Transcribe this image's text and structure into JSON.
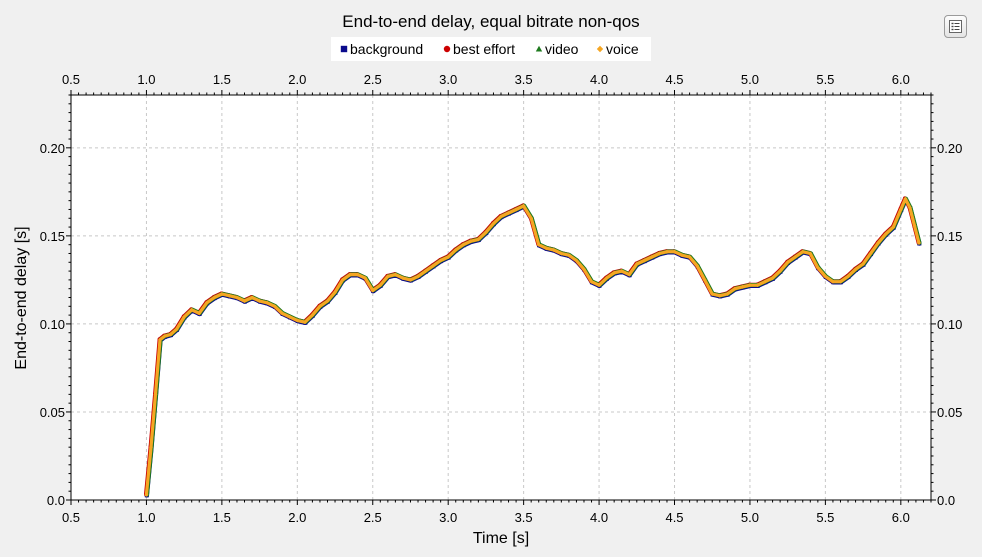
{
  "window": {
    "menu_icon": "chart-options-menu-icon"
  },
  "chart_data": {
    "type": "line",
    "title": "End-to-end delay, equal bitrate non-qos",
    "xlabel": "Time [s]",
    "ylabel": "End-to-end delay [s]",
    "xlim": [
      0.5,
      6.2
    ],
    "ylim": [
      0.0,
      0.23
    ],
    "xticks": [
      "0.5",
      "1.0",
      "1.5",
      "2.0",
      "2.5",
      "3.0",
      "3.5",
      "4.0",
      "4.5",
      "5.0",
      "5.5",
      "6.0"
    ],
    "yticks": [
      "0.0",
      "0.05",
      "0.10",
      "0.15",
      "0.20"
    ],
    "grid": true,
    "legend_position": "top",
    "x": [
      1.0,
      1.03,
      1.06,
      1.09,
      1.12,
      1.16,
      1.2,
      1.25,
      1.3,
      1.35,
      1.4,
      1.45,
      1.5,
      1.55,
      1.6,
      1.65,
      1.7,
      1.75,
      1.8,
      1.85,
      1.9,
      1.95,
      2.0,
      2.05,
      2.1,
      2.15,
      2.2,
      2.25,
      2.3,
      2.35,
      2.4,
      2.45,
      2.5,
      2.55,
      2.6,
      2.65,
      2.7,
      2.75,
      2.8,
      2.85,
      2.9,
      2.95,
      3.0,
      3.05,
      3.1,
      3.15,
      3.2,
      3.25,
      3.3,
      3.35,
      3.4,
      3.45,
      3.5,
      3.55,
      3.6,
      3.65,
      3.7,
      3.75,
      3.8,
      3.85,
      3.9,
      3.95,
      4.0,
      4.05,
      4.1,
      4.15,
      4.2,
      4.25,
      4.3,
      4.35,
      4.4,
      4.45,
      4.5,
      4.55,
      4.6,
      4.65,
      4.7,
      4.75,
      4.8,
      4.85,
      4.9,
      4.95,
      5.0,
      5.05,
      5.1,
      5.15,
      5.2,
      5.25,
      5.3,
      5.35,
      5.4,
      5.45,
      5.5,
      5.55,
      5.6,
      5.65,
      5.7,
      5.75,
      5.8,
      5.85,
      5.9,
      5.95,
      6.0,
      6.03,
      6.06,
      6.09,
      6.12
    ],
    "series": [
      {
        "name": "background",
        "color": "#0a0a8c",
        "marker": "square",
        "values": [
          0.003,
          0.03,
          0.06,
          0.091,
          0.093,
          0.094,
          0.097,
          0.104,
          0.108,
          0.106,
          0.112,
          0.115,
          0.117,
          0.116,
          0.115,
          0.113,
          0.115,
          0.113,
          0.112,
          0.11,
          0.106,
          0.104,
          0.102,
          0.101,
          0.105,
          0.11,
          0.113,
          0.118,
          0.125,
          0.128,
          0.128,
          0.126,
          0.119,
          0.122,
          0.127,
          0.128,
          0.126,
          0.125,
          0.127,
          0.13,
          0.133,
          0.136,
          0.138,
          0.142,
          0.145,
          0.147,
          0.148,
          0.152,
          0.157,
          0.161,
          0.163,
          0.165,
          0.167,
          0.16,
          0.145,
          0.143,
          0.142,
          0.14,
          0.139,
          0.136,
          0.131,
          0.124,
          0.122,
          0.126,
          0.129,
          0.13,
          0.128,
          0.134,
          0.136,
          0.138,
          0.14,
          0.141,
          0.141,
          0.139,
          0.138,
          0.133,
          0.125,
          0.117,
          0.116,
          0.117,
          0.12,
          0.121,
          0.122,
          0.122,
          0.124,
          0.126,
          0.13,
          0.135,
          0.138,
          0.141,
          0.14,
          0.132,
          0.127,
          0.124,
          0.124,
          0.127,
          0.131,
          0.134,
          0.14,
          0.146,
          0.151,
          0.155,
          0.165,
          0.171,
          0.166,
          0.156,
          0.146
        ]
      },
      {
        "name": "best effort",
        "color": "#cc0000",
        "marker": "circle",
        "values": [
          0.003,
          0.03,
          0.06,
          0.091,
          0.093,
          0.094,
          0.097,
          0.104,
          0.108,
          0.106,
          0.112,
          0.115,
          0.117,
          0.116,
          0.115,
          0.113,
          0.115,
          0.113,
          0.112,
          0.11,
          0.106,
          0.104,
          0.102,
          0.101,
          0.105,
          0.11,
          0.113,
          0.118,
          0.125,
          0.128,
          0.128,
          0.126,
          0.119,
          0.122,
          0.127,
          0.128,
          0.126,
          0.125,
          0.127,
          0.13,
          0.133,
          0.136,
          0.138,
          0.142,
          0.145,
          0.147,
          0.148,
          0.152,
          0.157,
          0.161,
          0.163,
          0.165,
          0.167,
          0.16,
          0.145,
          0.143,
          0.142,
          0.14,
          0.139,
          0.136,
          0.131,
          0.124,
          0.122,
          0.126,
          0.129,
          0.13,
          0.128,
          0.134,
          0.136,
          0.138,
          0.14,
          0.141,
          0.141,
          0.139,
          0.138,
          0.133,
          0.125,
          0.117,
          0.116,
          0.117,
          0.12,
          0.121,
          0.122,
          0.122,
          0.124,
          0.126,
          0.13,
          0.135,
          0.138,
          0.141,
          0.14,
          0.132,
          0.127,
          0.124,
          0.124,
          0.127,
          0.131,
          0.134,
          0.14,
          0.146,
          0.151,
          0.155,
          0.165,
          0.171,
          0.166,
          0.156,
          0.146
        ]
      },
      {
        "name": "video",
        "color": "#1e7a1e",
        "marker": "triangle",
        "values": [
          0.003,
          0.03,
          0.06,
          0.091,
          0.093,
          0.094,
          0.097,
          0.104,
          0.108,
          0.106,
          0.112,
          0.115,
          0.117,
          0.116,
          0.115,
          0.113,
          0.115,
          0.113,
          0.112,
          0.11,
          0.106,
          0.104,
          0.102,
          0.101,
          0.105,
          0.11,
          0.113,
          0.118,
          0.125,
          0.128,
          0.128,
          0.126,
          0.119,
          0.122,
          0.127,
          0.128,
          0.126,
          0.125,
          0.127,
          0.13,
          0.133,
          0.136,
          0.138,
          0.142,
          0.145,
          0.147,
          0.148,
          0.152,
          0.157,
          0.161,
          0.163,
          0.165,
          0.167,
          0.16,
          0.145,
          0.143,
          0.142,
          0.14,
          0.139,
          0.136,
          0.131,
          0.124,
          0.122,
          0.126,
          0.129,
          0.13,
          0.128,
          0.134,
          0.136,
          0.138,
          0.14,
          0.141,
          0.141,
          0.139,
          0.138,
          0.133,
          0.125,
          0.117,
          0.116,
          0.117,
          0.12,
          0.121,
          0.122,
          0.122,
          0.124,
          0.126,
          0.13,
          0.135,
          0.138,
          0.141,
          0.14,
          0.132,
          0.127,
          0.124,
          0.124,
          0.127,
          0.131,
          0.134,
          0.14,
          0.146,
          0.151,
          0.155,
          0.165,
          0.171,
          0.166,
          0.156,
          0.146
        ]
      },
      {
        "name": "voice",
        "color": "#f5a623",
        "marker": "diamond",
        "values": [
          0.003,
          0.03,
          0.06,
          0.091,
          0.093,
          0.094,
          0.097,
          0.104,
          0.108,
          0.106,
          0.112,
          0.115,
          0.117,
          0.116,
          0.115,
          0.113,
          0.115,
          0.113,
          0.112,
          0.11,
          0.106,
          0.104,
          0.102,
          0.101,
          0.105,
          0.11,
          0.113,
          0.118,
          0.125,
          0.128,
          0.128,
          0.126,
          0.119,
          0.122,
          0.127,
          0.128,
          0.126,
          0.125,
          0.127,
          0.13,
          0.133,
          0.136,
          0.138,
          0.142,
          0.145,
          0.147,
          0.148,
          0.152,
          0.157,
          0.161,
          0.163,
          0.165,
          0.167,
          0.16,
          0.145,
          0.143,
          0.142,
          0.14,
          0.139,
          0.136,
          0.131,
          0.124,
          0.122,
          0.126,
          0.129,
          0.13,
          0.128,
          0.134,
          0.136,
          0.138,
          0.14,
          0.141,
          0.141,
          0.139,
          0.138,
          0.133,
          0.125,
          0.117,
          0.116,
          0.117,
          0.12,
          0.121,
          0.122,
          0.122,
          0.124,
          0.126,
          0.13,
          0.135,
          0.138,
          0.141,
          0.14,
          0.132,
          0.127,
          0.124,
          0.124,
          0.127,
          0.131,
          0.134,
          0.14,
          0.146,
          0.151,
          0.155,
          0.165,
          0.171,
          0.166,
          0.156,
          0.146
        ]
      }
    ]
  }
}
